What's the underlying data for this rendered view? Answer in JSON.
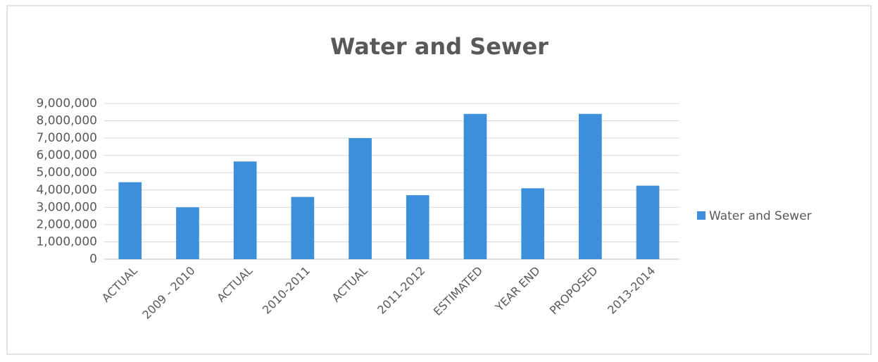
{
  "chart_data": {
    "type": "bar",
    "title": "Water and Sewer",
    "categories": [
      "ACTUAL",
      "2009 - 2010",
      "ACTUAL",
      "2010-2011",
      "ACTUAL",
      "2011-2012",
      "ESTIMATED",
      "YEAR END",
      "PROPOSED",
      "2013-2014"
    ],
    "series": [
      {
        "name": "Water and Sewer",
        "color": "#3d8fdc",
        "values": [
          4450000,
          3000000,
          5650000,
          3600000,
          7000000,
          3700000,
          8400000,
          4100000,
          8400000,
          4250000
        ]
      }
    ],
    "ylim": [
      0,
      9000000
    ],
    "yticks": [
      0,
      {
        "value": 1000000,
        "label": "1,000,000"
      },
      {
        "value": 2000000,
        "label": "2,000,000"
      },
      {
        "value": 3000000,
        "label": "3,000,000"
      },
      {
        "value": 4000000,
        "label": "4,000,000"
      },
      {
        "value": 5000000,
        "label": "5,000,000"
      },
      {
        "value": 6000000,
        "label": "6,000,000"
      },
      {
        "value": 7000000,
        "label": "7,000,000"
      },
      {
        "value": 8000000,
        "label": "8,000,000"
      },
      {
        "value": 9000000,
        "label": "9,000,000"
      }
    ],
    "grid": true,
    "legend": "right"
  }
}
